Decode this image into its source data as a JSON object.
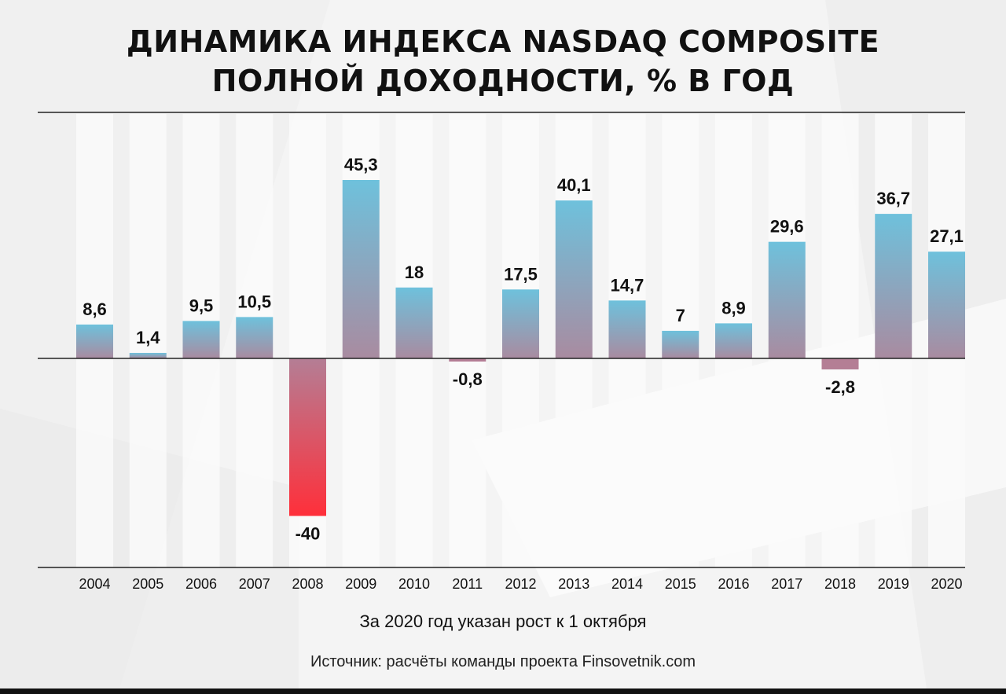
{
  "title_line1": "ДИНАМИКА ИНДЕКСА NASDAQ COMPOSITE",
  "title_line2": "ПОЛНОЙ ДОХОДНОСТИ, % В ГОД",
  "note": "За 2020 год указан рост к 1 октября",
  "source": "Источник: расчёты команды проекта Finsovetnik.com",
  "colors": {
    "positive_top": "#6ec1dc",
    "positive_bottom": "#a98ba0",
    "negative_small": "#b47e95",
    "negative_strong": "#ff2f3a",
    "axis": "#222222",
    "column_bg": "#fafafa"
  },
  "chart_data": {
    "type": "bar",
    "categories": [
      "2004",
      "2005",
      "2006",
      "2007",
      "2008",
      "2009",
      "2010",
      "2011",
      "2012",
      "2013",
      "2014",
      "2015",
      "2016",
      "2017",
      "2018",
      "2019",
      "2020"
    ],
    "values": [
      8.6,
      1.4,
      9.5,
      10.5,
      -40,
      45.3,
      18,
      -0.8,
      17.5,
      40.1,
      14.7,
      7,
      8.9,
      29.6,
      -2.8,
      36.7,
      27.1
    ],
    "labels": [
      "8,6",
      "1,4",
      "9,5",
      "10,5",
      "-40",
      "45,3",
      "18",
      "-0,8",
      "17,5",
      "40,1",
      "14,7",
      "7",
      "8,9",
      "29,6",
      "-2,8",
      "36,7",
      "27,1"
    ],
    "ylim": [
      -52,
      61
    ],
    "grid": false
  }
}
